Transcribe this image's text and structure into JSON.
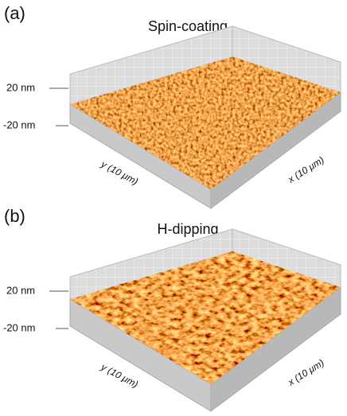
{
  "panels": [
    {
      "label": "(a)",
      "title": "Spin-coating",
      "z_top": "20 nm",
      "z_bottom": "-20 nm",
      "y_axis": "y (10 μm)",
      "x_axis": "x (10 μm)"
    },
    {
      "label": "(b)",
      "title": "H-dipping",
      "z_top": "20 nm",
      "z_bottom": "-20 nm",
      "y_axis": "y (10 μm)",
      "x_axis": "x (10 μm)"
    }
  ]
}
